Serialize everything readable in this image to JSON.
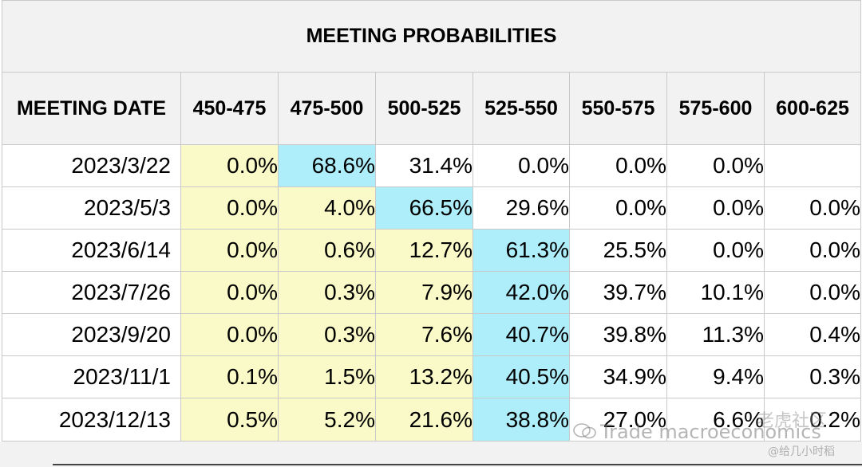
{
  "table": {
    "title": "MEETING PROBABILITIES",
    "headers": [
      "MEETING DATE",
      "450-475",
      "475-500",
      "500-525",
      "525-550",
      "550-575",
      "575-600",
      "600-625"
    ],
    "rows": [
      {
        "date": "2023/3/22",
        "values": [
          "0.0%",
          "68.6%",
          "31.4%",
          "0.0%",
          "0.0%",
          "0.0%",
          ""
        ]
      },
      {
        "date": "2023/5/3",
        "values": [
          "0.0%",
          "4.0%",
          "66.5%",
          "29.6%",
          "0.0%",
          "0.0%",
          "0.0%"
        ]
      },
      {
        "date": "2023/6/14",
        "values": [
          "0.0%",
          "0.6%",
          "12.7%",
          "61.3%",
          "25.5%",
          "0.0%",
          "0.0%"
        ]
      },
      {
        "date": "2023/7/26",
        "values": [
          "0.0%",
          "0.3%",
          "7.9%",
          "42.0%",
          "39.7%",
          "10.1%",
          "0.0%"
        ]
      },
      {
        "date": "2023/9/20",
        "values": [
          "0.0%",
          "0.3%",
          "7.6%",
          "40.7%",
          "39.8%",
          "11.3%",
          "0.4%"
        ]
      },
      {
        "date": "2023/11/1",
        "values": [
          "0.1%",
          "1.5%",
          "13.2%",
          "40.5%",
          "34.9%",
          "9.4%",
          "0.3%"
        ]
      },
      {
        "date": "2023/12/13",
        "values": [
          "0.5%",
          "5.2%",
          "21.6%",
          "38.8%",
          "27.0%",
          "6.6%",
          "0.2%"
        ]
      }
    ],
    "cell_colors": [
      [
        "y",
        "b",
        "w",
        "w",
        "w",
        "w",
        "w"
      ],
      [
        "y",
        "y",
        "b",
        "w",
        "w",
        "w",
        "w"
      ],
      [
        "y",
        "y",
        "y",
        "b",
        "w",
        "w",
        "w"
      ],
      [
        "y",
        "y",
        "y",
        "b",
        "w",
        "w",
        "w"
      ],
      [
        "y",
        "y",
        "y",
        "b",
        "w",
        "w",
        "w"
      ],
      [
        "y",
        "y",
        "y",
        "b",
        "w",
        "w",
        "w"
      ],
      [
        "y",
        "y",
        "y",
        "b",
        "w",
        "w",
        "w"
      ]
    ],
    "colors": {
      "yellow": "#fafac8",
      "blue": "#aeeefa",
      "header_bg": "#f2f2f2",
      "border": "#c9c9c9"
    }
  },
  "watermark": {
    "main": "Trade macroeconomics",
    "top": "老虎社区",
    "sub": "@给几小时稻",
    "icon": "wechat-icon"
  }
}
